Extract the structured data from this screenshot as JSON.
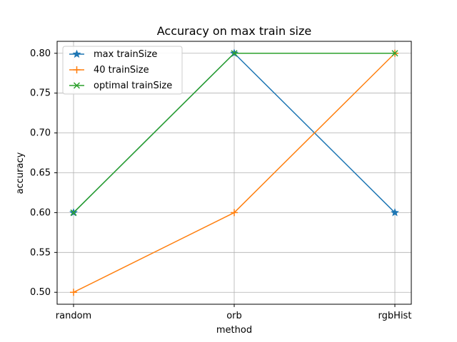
{
  "chart_data": {
    "type": "line",
    "title": "Accuracy on max train size",
    "xlabel": "method",
    "ylabel": "accuracy",
    "categories": [
      "random",
      "orb",
      "rgbHist"
    ],
    "ylim": [
      0.485,
      0.815
    ],
    "yticks": [
      0.5,
      0.55,
      0.6,
      0.65,
      0.7,
      0.75,
      0.8
    ],
    "ytick_labels": [
      "0.50",
      "0.55",
      "0.60",
      "0.65",
      "0.70",
      "0.75",
      "0.80"
    ],
    "grid": true,
    "legend_position": "upper-left",
    "series": [
      {
        "name": "max trainSize",
        "values": [
          0.6,
          0.8,
          0.6
        ],
        "color": "#1f77b4",
        "marker": "star"
      },
      {
        "name": "40 trainSize",
        "values": [
          0.5,
          0.6,
          0.8
        ],
        "color": "#ff7f0e",
        "marker": "plus"
      },
      {
        "name": "optimal trainSize",
        "values": [
          0.6,
          0.8,
          0.8
        ],
        "color": "#2ca02c",
        "marker": "x"
      }
    ]
  }
}
